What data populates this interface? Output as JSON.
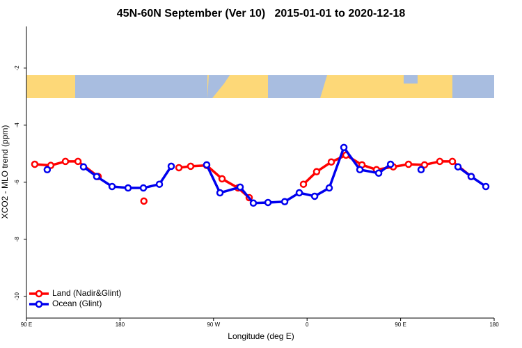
{
  "chart_data": {
    "type": "line",
    "title": "45N-60N September (Ver 10)   2015-01-01 to 2020-12-18",
    "x_label": "Longitude (deg E)",
    "y_label": "XCO2 - MLO trend (ppm)",
    "xlim": [
      90,
      540
    ],
    "xticks": [
      {
        "value": 90,
        "label": "90 E"
      },
      {
        "value": 180,
        "label": "180"
      },
      {
        "value": 270,
        "label": "90 W"
      },
      {
        "value": 360,
        "label": "0"
      },
      {
        "value": 450,
        "label": "90 E"
      },
      {
        "value": 540,
        "label": "180"
      }
    ],
    "ylim": [
      -10.76,
      -0.54
    ],
    "yticks": [
      -2,
      -4,
      -6,
      -8,
      -10
    ],
    "legend": "bottom-left",
    "series": [
      {
        "name": "Land (Nadir&Glint)",
        "color": "#ff0000",
        "x": [
          98,
          113.4,
          127.5,
          139.6,
          159,
          null,
          203,
          null,
          236.7,
          248,
          263.4,
          278.2,
          293.6,
          304.3,
          null,
          356.5,
          369.2,
          383.3,
          397.4,
          412.8,
          426.8,
          442.9,
          457.6,
          473,
          487.7,
          499.8,
          517.9
        ],
        "values": [
          -5.37,
          -5.41,
          -5.27,
          -5.27,
          -5.8,
          null,
          -6.66,
          null,
          -5.49,
          -5.44,
          -5.41,
          -5.88,
          -6.2,
          -6.54,
          null,
          -6.07,
          -5.63,
          -5.29,
          -5.05,
          -5.39,
          -5.56,
          -5.46,
          -5.37,
          -5.39,
          -5.27,
          -5.27,
          -5.8
        ]
      },
      {
        "name": "Ocean (Glint)",
        "color": "#0000ee",
        "x": [
          110,
          null,
          144.9,
          157.6,
          172.4,
          187.8,
          202.5,
          217.9,
          229.3,
          null,
          263.4,
          276.2,
          295.6,
          308.3,
          322.4,
          338.5,
          352.5,
          367.3,
          381.3,
          395.4,
          410.8,
          428.9,
          440.3,
          null,
          469.7,
          null,
          505.2,
          517.9,
          532
        ],
        "values": [
          -5.56,
          null,
          -5.46,
          -5.8,
          -6.15,
          -6.2,
          -6.2,
          -6.07,
          -5.44,
          null,
          -5.39,
          -6.37,
          -6.17,
          -6.73,
          -6.71,
          -6.68,
          -6.37,
          -6.49,
          -6.2,
          -4.78,
          -5.56,
          -5.68,
          -5.37,
          null,
          -5.56,
          null,
          -5.46,
          -5.8,
          -6.15
        ]
      }
    ]
  }
}
